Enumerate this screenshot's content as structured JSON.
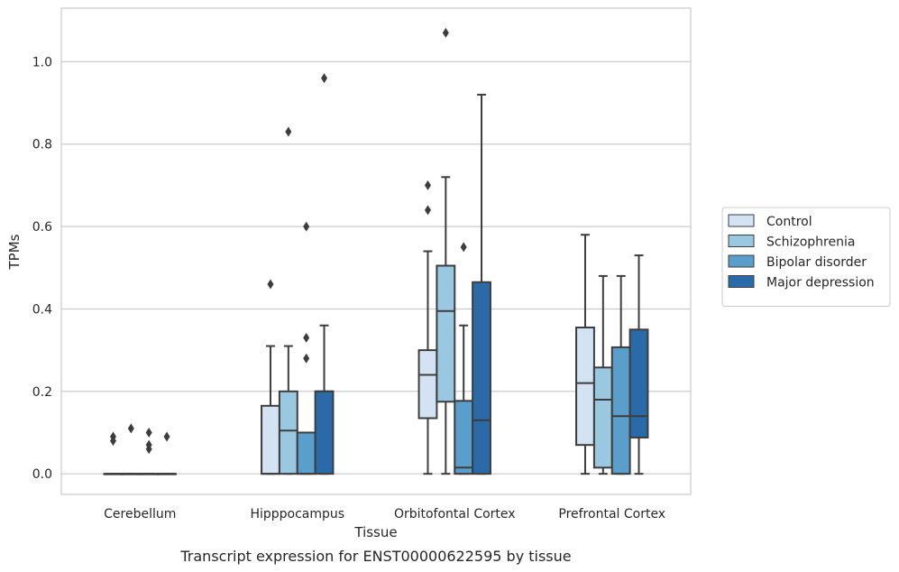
{
  "chart_data": {
    "type": "box",
    "xlabel": "Tissue",
    "ylabel": "TPMs",
    "caption": "Transcript expression for ENST00000622595 by tissue",
    "ylim": [
      -0.05,
      1.13
    ],
    "yticks": [
      0.0,
      0.2,
      0.4,
      0.6,
      0.8,
      1.0
    ],
    "ytick_labels": [
      "0.0",
      "0.2",
      "0.4",
      "0.6",
      "0.8",
      "1.0"
    ],
    "grid": true,
    "legend_position": "right",
    "categories": [
      "Cerebellum",
      "Hipppocampus",
      "Orbitofontal Cortex",
      "Prefrontal Cortex"
    ],
    "series": [
      {
        "name": "Control",
        "color": "#d3e3f3",
        "boxes": [
          {
            "q1": 0.0,
            "median": 0.0,
            "q3": 0.0,
            "whislo": 0.0,
            "whishi": 0.0,
            "fliers": [
              0.08,
              0.09
            ]
          },
          {
            "q1": 0.0,
            "median": 0.0,
            "q3": 0.165,
            "whislo": 0.0,
            "whishi": 0.31,
            "fliers": [
              0.46
            ]
          },
          {
            "q1": 0.135,
            "median": 0.24,
            "q3": 0.3,
            "whislo": 0.0,
            "whishi": 0.54,
            "fliers": [
              0.64,
              0.7
            ]
          },
          {
            "q1": 0.07,
            "median": 0.22,
            "q3": 0.355,
            "whislo": 0.0,
            "whishi": 0.58,
            "fliers": []
          }
        ]
      },
      {
        "name": "Schizophrenia",
        "color": "#9ac8e0",
        "boxes": [
          {
            "q1": 0.0,
            "median": 0.0,
            "q3": 0.0,
            "whislo": 0.0,
            "whishi": 0.0,
            "fliers": [
              0.11
            ]
          },
          {
            "q1": 0.0,
            "median": 0.105,
            "q3": 0.2,
            "whislo": 0.0,
            "whishi": 0.31,
            "fliers": [
              0.83
            ]
          },
          {
            "q1": 0.175,
            "median": 0.395,
            "q3": 0.505,
            "whislo": 0.0,
            "whishi": 0.72,
            "fliers": [
              1.07
            ]
          },
          {
            "q1": 0.015,
            "median": 0.18,
            "q3": 0.258,
            "whislo": 0.0,
            "whishi": 0.48,
            "fliers": []
          }
        ]
      },
      {
        "name": "Bipolar disorder",
        "color": "#5a9fcb",
        "boxes": [
          {
            "q1": 0.0,
            "median": 0.0,
            "q3": 0.0,
            "whislo": 0.0,
            "whishi": 0.0,
            "fliers": [
              0.06,
              0.07,
              0.1
            ]
          },
          {
            "q1": 0.0,
            "median": 0.0,
            "q3": 0.1,
            "whislo": 0.0,
            "whishi": 0.1,
            "fliers": [
              0.28,
              0.33,
              0.6
            ]
          },
          {
            "q1": 0.0,
            "median": 0.015,
            "q3": 0.177,
            "whislo": 0.0,
            "whishi": 0.36,
            "fliers": [
              0.55
            ]
          },
          {
            "q1": 0.0,
            "median": 0.14,
            "q3": 0.307,
            "whislo": 0.0,
            "whishi": 0.48,
            "fliers": []
          }
        ]
      },
      {
        "name": "Major depression",
        "color": "#2a6aa8",
        "boxes": [
          {
            "q1": 0.0,
            "median": 0.0,
            "q3": 0.0,
            "whislo": 0.0,
            "whishi": 0.0,
            "fliers": [
              0.09
            ]
          },
          {
            "q1": 0.0,
            "median": 0.2,
            "q3": 0.2,
            "whislo": 0.0,
            "whishi": 0.36,
            "fliers": [
              0.96
            ]
          },
          {
            "q1": 0.0,
            "median": 0.13,
            "q3": 0.465,
            "whislo": 0.0,
            "whishi": 0.92,
            "fliers": []
          },
          {
            "q1": 0.088,
            "median": 0.14,
            "q3": 0.35,
            "whislo": 0.0,
            "whishi": 0.53,
            "fliers": []
          }
        ]
      }
    ]
  }
}
